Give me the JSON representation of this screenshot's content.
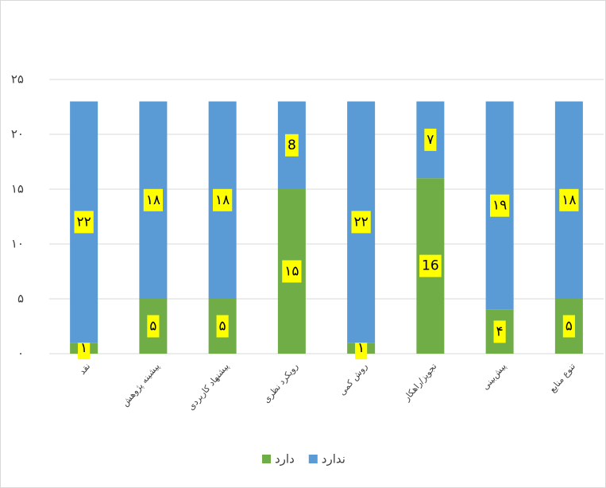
{
  "chart_data": {
    "type": "stacked-bar",
    "categories": [
      "نقد",
      "پیشینه پژوهش",
      "پیشنهاد کاربردی",
      "رویکرد نظری",
      "روش کمی",
      "تجویز/راهکار",
      "پیش‌بینی",
      "تنوع منابع"
    ],
    "series": [
      {
        "name": "دارد",
        "color": "#70ad47",
        "values": [
          1,
          5,
          5,
          15,
          1,
          16,
          4,
          5
        ],
        "value_labels": [
          "۱",
          "۵",
          "۵",
          "۱۵",
          "۱",
          "16",
          "۴",
          "۵"
        ]
      },
      {
        "name": "ندارد",
        "color": "#5b9bd5",
        "values": [
          22,
          18,
          18,
          8,
          22,
          7,
          19,
          18
        ],
        "value_labels": [
          "۲۲",
          "۱۸",
          "۱۸",
          "8",
          "۲۲",
          "۷",
          "۱۹",
          "۱۸"
        ]
      }
    ],
    "ylim": [
      0,
      25
    ],
    "yticks": [
      {
        "value": 0,
        "label": "۰"
      },
      {
        "value": 5,
        "label": "۵"
      },
      {
        "value": 10,
        "label": "۱۰"
      },
      {
        "value": 15,
        "label": "۱۵"
      },
      {
        "value": 20,
        "label": "۲۰"
      },
      {
        "value": 25,
        "label": "۲۵"
      }
    ],
    "grid": true,
    "legend": "bottom"
  }
}
